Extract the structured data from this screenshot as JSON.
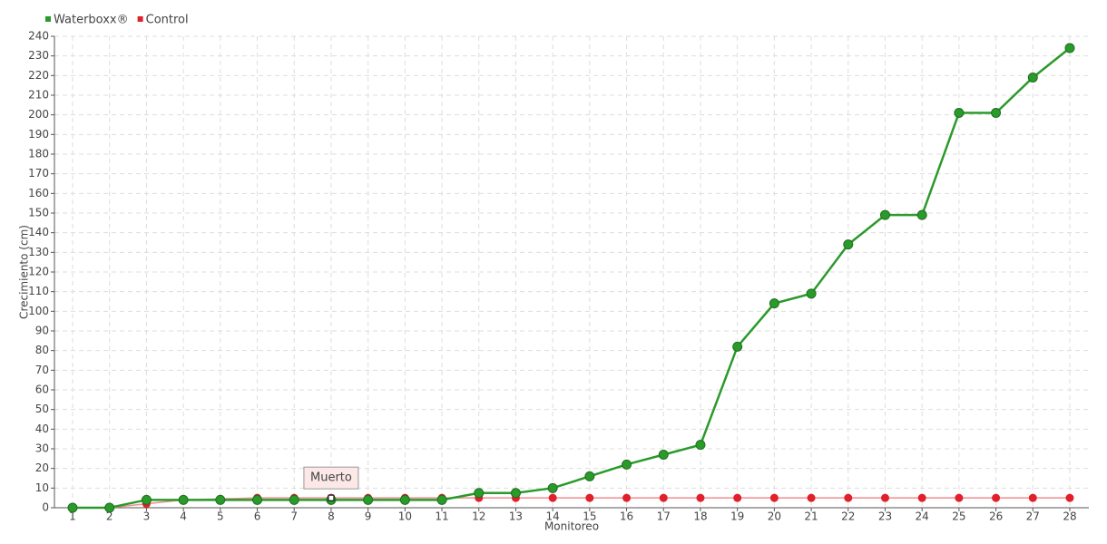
{
  "chart_data": {
    "type": "line",
    "x_label": "Monitoreo",
    "y_label": "Crecimiento (cm)",
    "categories": [
      "1",
      "2",
      "3",
      "4",
      "5",
      "6",
      "7",
      "8",
      "9",
      "10",
      "11",
      "12",
      "13",
      "14",
      "15",
      "16",
      "17",
      "18",
      "19",
      "20",
      "21",
      "22",
      "23",
      "24",
      "25",
      "26",
      "27",
      "28"
    ],
    "series": [
      {
        "name": "Waterboxx®",
        "color": "#2a9a2a",
        "values": [
          0,
          0,
          4,
          4,
          4,
          4,
          4,
          4,
          4,
          4,
          4,
          7.5,
          7.5,
          10,
          16,
          22,
          27,
          32,
          82,
          104,
          109,
          134,
          149,
          149,
          201,
          201,
          219,
          234
        ]
      },
      {
        "name": "Control",
        "color": "#e0202a",
        "values": [
          0,
          0,
          2,
          4,
          4.5,
          5,
          5,
          5,
          5,
          5,
          5,
          5,
          5,
          5,
          5,
          5,
          5,
          5,
          5,
          5,
          5,
          5,
          5,
          5,
          5,
          5,
          5,
          5
        ]
      }
    ],
    "annotation": "Muerto",
    "ylim": [
      0,
      240
    ],
    "yticks": [
      0,
      10,
      20,
      30,
      40,
      50,
      60,
      70,
      80,
      90,
      100,
      110,
      120,
      130,
      140,
      150,
      160,
      170,
      180,
      190,
      200,
      210,
      220,
      230,
      240
    ],
    "grid": true,
    "legend": "top-left"
  }
}
